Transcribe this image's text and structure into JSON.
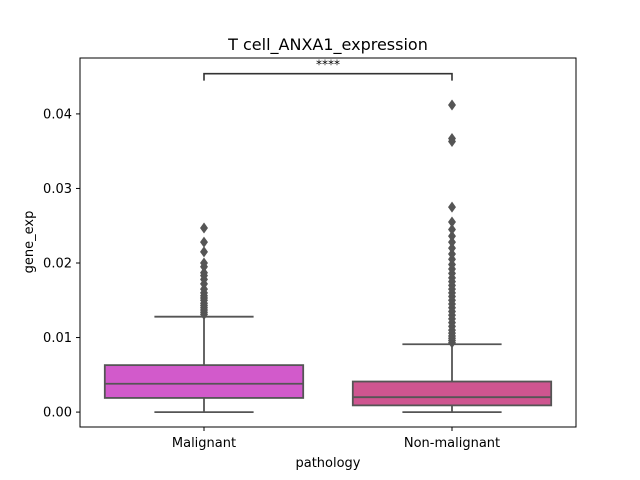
{
  "chart_data": {
    "type": "box",
    "title": "T cell_ANXA1_expression",
    "xlabel": "pathology",
    "ylabel": "gene_exp",
    "categories": [
      "Malignant",
      "Non-malignant"
    ],
    "ylim": [
      -0.002,
      0.0475
    ],
    "yticks": [
      "0.00",
      "0.01",
      "0.02",
      "0.03",
      "0.04"
    ],
    "grid": false,
    "series": [
      {
        "category": "Malignant",
        "color": "#D25ACB",
        "whisker_low": 0.0,
        "q1": 0.0019,
        "median": 0.0038,
        "q3": 0.0063,
        "whisker_high": 0.0128,
        "outliers": [
          0.0131,
          0.0134,
          0.0137,
          0.014,
          0.0143,
          0.0146,
          0.015,
          0.0153,
          0.0156,
          0.016,
          0.0165,
          0.0172,
          0.0178,
          0.0183,
          0.0187,
          0.0195,
          0.02,
          0.0215,
          0.0228,
          0.0247
        ]
      },
      {
        "category": "Non-malignant",
        "color": "#CF5590",
        "whisker_low": 0.0,
        "q1": 0.0009,
        "median": 0.002,
        "q3": 0.0041,
        "whisker_high": 0.0091,
        "outliers": [
          0.0093,
          0.0096,
          0.0099,
          0.0102,
          0.0106,
          0.011,
          0.0115,
          0.012,
          0.0125,
          0.013,
          0.0135,
          0.014,
          0.0145,
          0.015,
          0.0155,
          0.016,
          0.0165,
          0.017,
          0.0175,
          0.018,
          0.0186,
          0.0192,
          0.0198,
          0.0205,
          0.0212,
          0.022,
          0.0228,
          0.0236,
          0.0245,
          0.0255,
          0.0275,
          0.0363,
          0.0367,
          0.0412
        ]
      }
    ],
    "annotation": {
      "text": "****",
      "between": [
        "Malignant",
        "Non-malignant"
      ],
      "y": 0.0454
    }
  }
}
